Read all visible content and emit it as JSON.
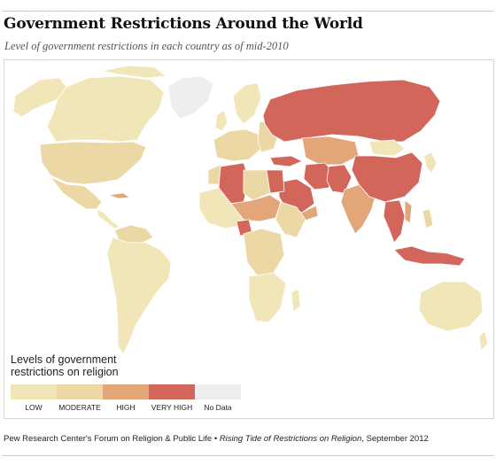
{
  "header": {
    "title": "Government Restrictions Around the World",
    "subtitle": "Level of government restrictions in each country as of mid-2010"
  },
  "colors": {
    "low": "#f1e6b8",
    "moderate": "#ecd8a4",
    "high": "#e3a679",
    "very_high": "#d2665a",
    "no_data": "#eeeef0",
    "border": "#ffffff"
  },
  "legend": {
    "title": "Levels of government restrictions on religion",
    "items": [
      {
        "label": "LOW",
        "color": "#f1e6b8"
      },
      {
        "label": "MODERATE",
        "color": "#ecd8a4"
      },
      {
        "label": "HIGH",
        "color": "#e3a679"
      },
      {
        "label": "VERY HIGH",
        "color": "#d2665a"
      },
      {
        "label": "No Data",
        "color": "#eeeef0"
      }
    ]
  },
  "footer": {
    "source_org": "Pew Research Center's Forum on Religion & Public Life",
    "bullet": "•",
    "publication": "Rising Tide of Restrictions on Religion",
    "date": ", September 2012"
  }
}
